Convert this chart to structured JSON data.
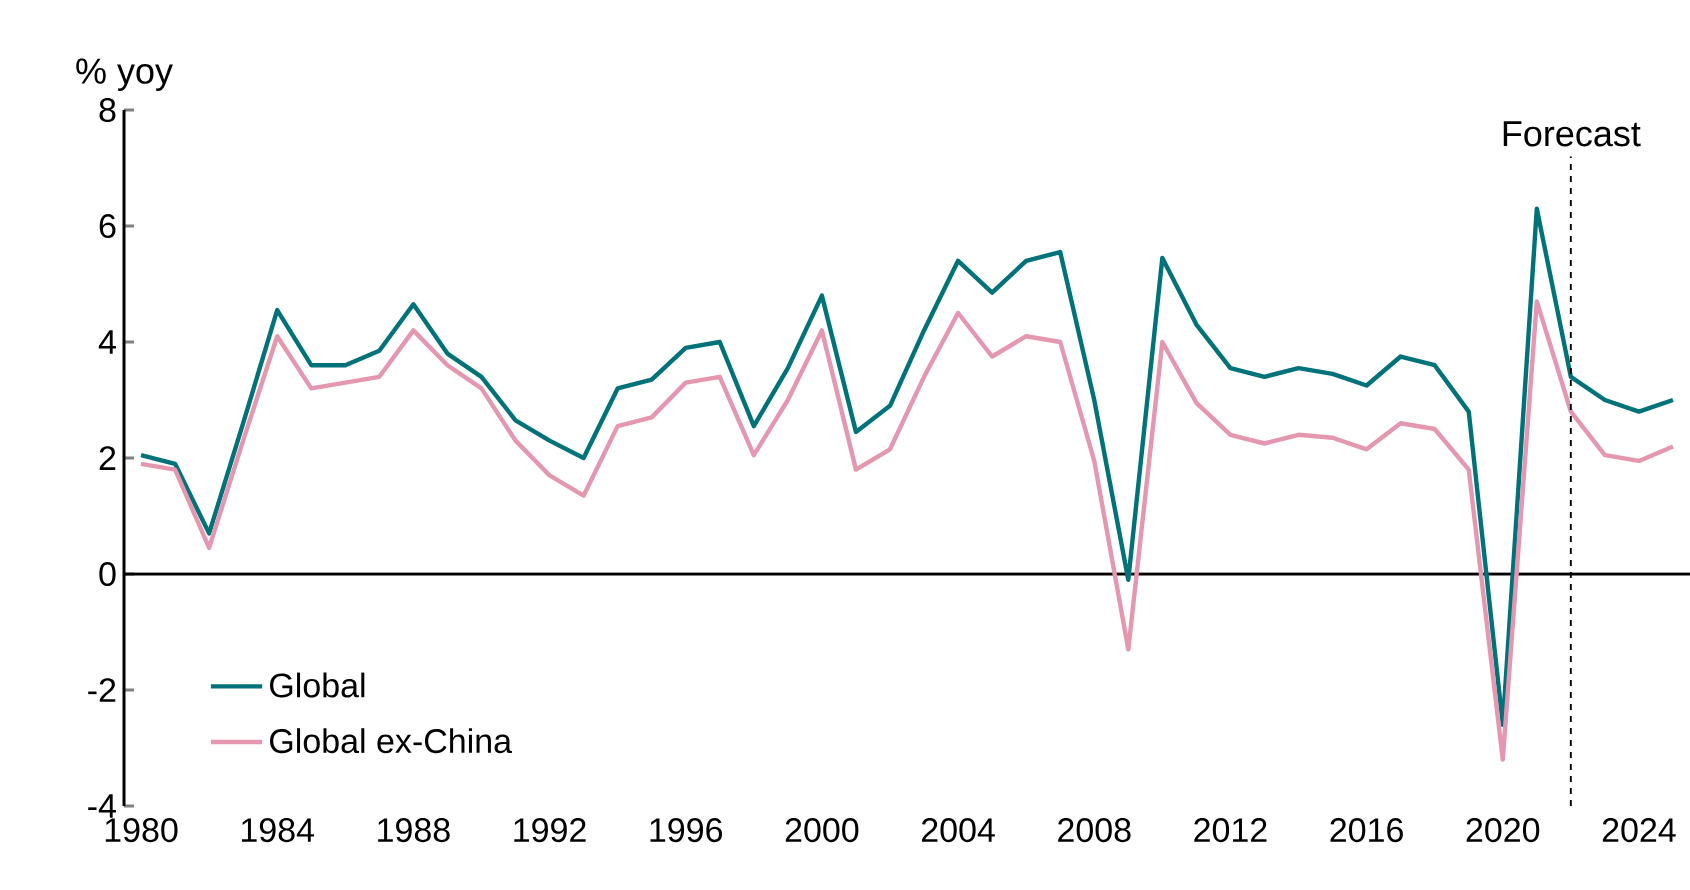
{
  "chart_data": {
    "type": "line",
    "ylabel": "% yoy",
    "x": [
      1980,
      1981,
      1982,
      1983,
      1984,
      1985,
      1986,
      1987,
      1988,
      1989,
      1990,
      1991,
      1992,
      1993,
      1994,
      1995,
      1996,
      1997,
      1998,
      1999,
      2000,
      2001,
      2002,
      2003,
      2004,
      2005,
      2006,
      2007,
      2008,
      2009,
      2010,
      2011,
      2012,
      2013,
      2014,
      2015,
      2016,
      2017,
      2018,
      2019,
      2020,
      2021,
      2022,
      2023,
      2024,
      2025
    ],
    "series": [
      {
        "name": "Global",
        "color": "#00727a",
        "values": [
          2.05,
          1.9,
          0.7,
          2.6,
          4.55,
          3.6,
          3.6,
          3.85,
          4.65,
          3.8,
          3.4,
          2.65,
          2.3,
          2.0,
          3.2,
          3.35,
          3.9,
          4.0,
          2.55,
          3.55,
          4.8,
          2.45,
          2.9,
          4.2,
          5.4,
          4.85,
          5.4,
          5.55,
          3.0,
          -0.1,
          5.45,
          4.3,
          3.55,
          3.4,
          3.55,
          3.45,
          3.25,
          3.75,
          3.6,
          2.8,
          -2.6,
          6.3,
          3.4,
          3.0,
          2.8,
          3.0
        ]
      },
      {
        "name": "Global ex-China",
        "color": "#e497ae",
        "values": [
          1.9,
          1.8,
          0.45,
          2.3,
          4.1,
          3.2,
          3.3,
          3.4,
          4.2,
          3.6,
          3.2,
          2.3,
          1.7,
          1.35,
          2.55,
          2.7,
          3.3,
          3.4,
          2.05,
          3.0,
          4.2,
          1.8,
          2.15,
          3.4,
          4.5,
          3.75,
          4.1,
          4.0,
          1.95,
          -1.3,
          4.0,
          2.95,
          2.4,
          2.25,
          2.4,
          2.35,
          2.15,
          2.6,
          2.5,
          1.8,
          -3.2,
          4.7,
          2.8,
          2.05,
          1.95,
          2.2
        ]
      }
    ],
    "xlim": [
      1979.5,
      2025.5
    ],
    "ylim": [
      -4,
      8
    ],
    "xticks": [
      1980,
      1984,
      1988,
      1992,
      1996,
      2000,
      2004,
      2008,
      2012,
      2016,
      2020,
      2024
    ],
    "yticks": [
      -4,
      -2,
      0,
      2,
      4,
      6,
      8
    ],
    "ref_lines": [
      {
        "axis": "x",
        "value": 2022,
        "label": "Forecast",
        "color": "#000000",
        "line_style": "dashed"
      }
    ],
    "legend": "bottom left"
  }
}
